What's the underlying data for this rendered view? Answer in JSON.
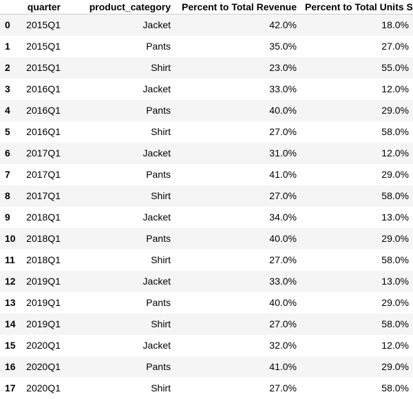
{
  "table": {
    "columns": [
      "quarter",
      "product_category",
      "Percent to Total Revenue",
      "Percent to Total Units Sold"
    ],
    "rows": [
      {
        "index": "0",
        "quarter": "2015Q1",
        "product_category": "Jacket",
        "revenue_pct": "42.0%",
        "units_pct": "18.0%"
      },
      {
        "index": "1",
        "quarter": "2015Q1",
        "product_category": "Pants",
        "revenue_pct": "35.0%",
        "units_pct": "27.0%"
      },
      {
        "index": "2",
        "quarter": "2015Q1",
        "product_category": "Shirt",
        "revenue_pct": "23.0%",
        "units_pct": "55.0%"
      },
      {
        "index": "3",
        "quarter": "2016Q1",
        "product_category": "Jacket",
        "revenue_pct": "33.0%",
        "units_pct": "12.0%"
      },
      {
        "index": "4",
        "quarter": "2016Q1",
        "product_category": "Pants",
        "revenue_pct": "40.0%",
        "units_pct": "29.0%"
      },
      {
        "index": "5",
        "quarter": "2016Q1",
        "product_category": "Shirt",
        "revenue_pct": "27.0%",
        "units_pct": "58.0%"
      },
      {
        "index": "6",
        "quarter": "2017Q1",
        "product_category": "Jacket",
        "revenue_pct": "31.0%",
        "units_pct": "12.0%"
      },
      {
        "index": "7",
        "quarter": "2017Q1",
        "product_category": "Pants",
        "revenue_pct": "41.0%",
        "units_pct": "29.0%"
      },
      {
        "index": "8",
        "quarter": "2017Q1",
        "product_category": "Shirt",
        "revenue_pct": "27.0%",
        "units_pct": "58.0%"
      },
      {
        "index": "9",
        "quarter": "2018Q1",
        "product_category": "Jacket",
        "revenue_pct": "34.0%",
        "units_pct": "13.0%"
      },
      {
        "index": "10",
        "quarter": "2018Q1",
        "product_category": "Pants",
        "revenue_pct": "40.0%",
        "units_pct": "29.0%"
      },
      {
        "index": "11",
        "quarter": "2018Q1",
        "product_category": "Shirt",
        "revenue_pct": "27.0%",
        "units_pct": "58.0%"
      },
      {
        "index": "12",
        "quarter": "2019Q1",
        "product_category": "Jacket",
        "revenue_pct": "33.0%",
        "units_pct": "13.0%"
      },
      {
        "index": "13",
        "quarter": "2019Q1",
        "product_category": "Pants",
        "revenue_pct": "40.0%",
        "units_pct": "29.0%"
      },
      {
        "index": "14",
        "quarter": "2019Q1",
        "product_category": "Shirt",
        "revenue_pct": "27.0%",
        "units_pct": "58.0%"
      },
      {
        "index": "15",
        "quarter": "2020Q1",
        "product_category": "Jacket",
        "revenue_pct": "32.0%",
        "units_pct": "12.0%"
      },
      {
        "index": "16",
        "quarter": "2020Q1",
        "product_category": "Pants",
        "revenue_pct": "41.0%",
        "units_pct": "29.0%"
      },
      {
        "index": "17",
        "quarter": "2020Q1",
        "product_category": "Shirt",
        "revenue_pct": "27.0%",
        "units_pct": "58.0%"
      }
    ]
  }
}
